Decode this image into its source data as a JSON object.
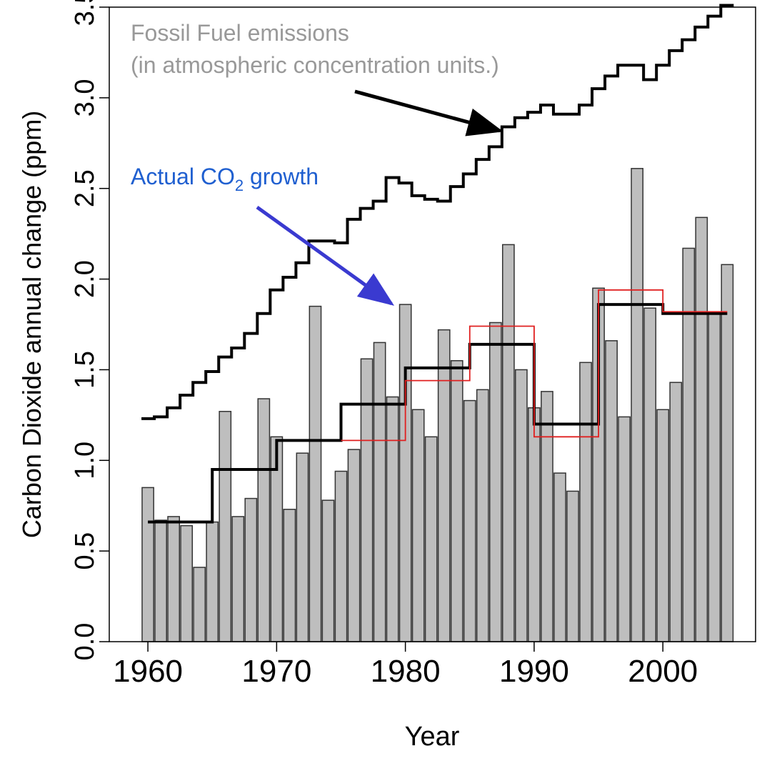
{
  "chart_data": {
    "type": "bar",
    "x_label": "Year",
    "y_label": "Carbon Dioxide annual change (ppm)",
    "annotations": {
      "fossil": [
        "Fossil Fuel emissions",
        "(in atmospheric concentration units.)"
      ],
      "actual": [
        "Actual CO",
        "2",
        " growth"
      ]
    },
    "xlim": [
      1957,
      2007.2
    ],
    "ylim": [
      0,
      3.5
    ],
    "xticks": [
      1960,
      1970,
      1980,
      1990,
      2000
    ],
    "yticks": [
      {
        "value": 0,
        "label": "0.0"
      },
      0.5,
      {
        "value": 1,
        "label": "1.0"
      },
      1.5,
      {
        "value": 2,
        "label": "2.0"
      },
      2.5,
      {
        "value": 3,
        "label": "3.0"
      },
      3.5
    ],
    "x": [
      1960,
      1961,
      1962,
      1963,
      1964,
      1965,
      1966,
      1967,
      1968,
      1969,
      1970,
      1971,
      1972,
      1973,
      1974,
      1975,
      1976,
      1977,
      1978,
      1979,
      1980,
      1981,
      1982,
      1983,
      1984,
      1985,
      1986,
      1987,
      1988,
      1989,
      1990,
      1991,
      1992,
      1993,
      1994,
      1995,
      1996,
      1997,
      1998,
      1999,
      2000,
      2001,
      2002,
      2003,
      2004,
      2005
    ],
    "values": [
      0.85,
      0.67,
      0.69,
      0.64,
      0.41,
      0.66,
      1.27,
      0.69,
      0.79,
      1.34,
      1.13,
      0.73,
      1.04,
      1.85,
      0.78,
      0.94,
      1.06,
      1.56,
      1.65,
      1.35,
      1.86,
      1.28,
      1.13,
      1.72,
      1.55,
      1.33,
      1.39,
      1.76,
      2.19,
      1.5,
      1.29,
      1.38,
      0.93,
      0.83,
      1.54,
      1.95,
      1.66,
      1.24,
      2.61,
      1.84,
      1.28,
      1.43,
      2.17,
      2.34,
      1.81,
      2.08
    ],
    "color": "#bebebe",
    "fossil_values": [
      1.23,
      1.24,
      1.29,
      1.36,
      1.43,
      1.49,
      1.57,
      1.62,
      1.7,
      1.81,
      1.94,
      2.01,
      2.09,
      2.21,
      2.21,
      2.2,
      2.33,
      2.39,
      2.43,
      2.56,
      2.53,
      2.46,
      2.44,
      2.43,
      2.51,
      2.58,
      2.66,
      2.73,
      2.84,
      2.89,
      2.92,
      2.96,
      2.91,
      2.91,
      2.96,
      3.05,
      3.12,
      3.18,
      3.18,
      3.1,
      3.18,
      3.26,
      3.32,
      3.39,
      3.45,
      3.51
    ],
    "fossil_color": "#000000",
    "steps": [
      {
        "color": "#000000",
        "bins": [
          1960,
          1965,
          1970,
          1975,
          1980,
          1985,
          1990,
          1995,
          2000,
          2005
        ],
        "values": [
          0.66,
          0.95,
          1.11,
          1.31,
          1.51,
          1.64,
          1.2,
          1.86,
          1.81
        ]
      },
      {
        "color": "#e02020",
        "bins": [
          1975,
          1980,
          1985,
          1990,
          1995,
          2000,
          2005
        ],
        "values": [
          1.11,
          1.44,
          1.74,
          1.13,
          1.94,
          1.82
        ]
      }
    ]
  }
}
